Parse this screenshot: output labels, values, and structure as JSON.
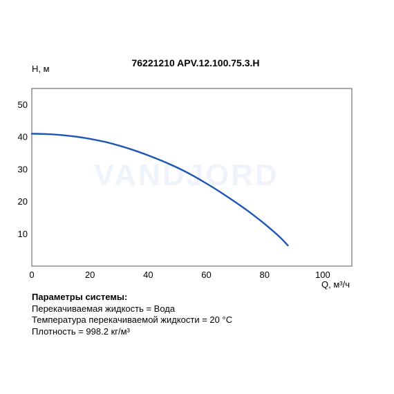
{
  "chart_data": {
    "type": "line",
    "title": "76221210 APV.12.100.75.3.H",
    "xlabel": "Q, м³/ч",
    "ylabel": "H, м",
    "xlim": [
      0,
      110
    ],
    "ylim": [
      0,
      55
    ],
    "xticks": [
      0,
      20,
      40,
      60,
      80,
      100
    ],
    "yticks": [
      10,
      20,
      30,
      40,
      50
    ],
    "grid": false,
    "watermark": "VANDJORD",
    "series": [
      {
        "color": "#1d56b3",
        "x": [
          0,
          5,
          10,
          15,
          20,
          25,
          30,
          35,
          40,
          45,
          50,
          55,
          60,
          65,
          70,
          75,
          80,
          85,
          88
        ],
        "y": [
          41.0,
          40.9,
          40.6,
          40.1,
          39.4,
          38.5,
          37.3,
          35.9,
          34.3,
          32.5,
          30.5,
          28.2,
          25.6,
          22.8,
          19.8,
          16.6,
          13.1,
          9.2,
          6.4
        ]
      }
    ]
  },
  "system_params": {
    "heading": "Параметры системы:",
    "lines": [
      "Перекачиваемая жидкость = Вода",
      "Температура перекачиваемой жидкости = 20 °C",
      "Плотность = 998.2 кг/м³"
    ]
  }
}
